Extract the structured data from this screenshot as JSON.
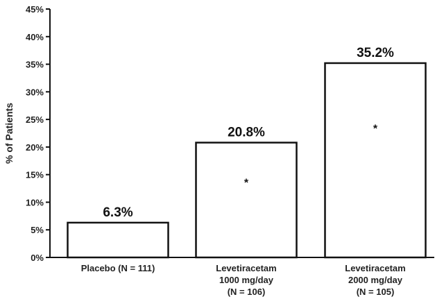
{
  "chart_data": {
    "type": "bar",
    "title": "",
    "xlabel": "",
    "ylabel": "% of Patients",
    "ylim": [
      0,
      45
    ],
    "yticks": [
      "0%",
      "5%",
      "10%",
      "15%",
      "20%",
      "25%",
      "30%",
      "35%",
      "40%",
      "45%"
    ],
    "grid": false,
    "categories": [
      [
        "Placebo (N = 111)"
      ],
      [
        "Levetiracetam",
        "1000 mg/day",
        "(N = 106)"
      ],
      [
        "Levetiracetam",
        "2000 mg/day",
        "(N = 105)"
      ]
    ],
    "values": [
      6.3,
      20.8,
      35.2
    ],
    "data_labels": [
      "6.3%",
      "20.8%",
      "35.2%"
    ],
    "markers": [
      "",
      "*",
      "*"
    ],
    "colors": {
      "bar_fill": "#ffffff",
      "bar_stroke": "#111111",
      "text": "#222222"
    }
  }
}
